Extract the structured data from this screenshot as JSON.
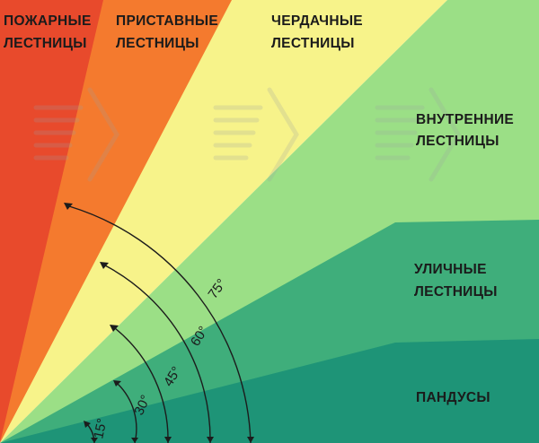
{
  "zones": [
    {
      "id": "fire",
      "label_line1": "ПОЖАРНЫЕ",
      "label_line2": "ЛЕСТНИЦЫ",
      "color": "#e84a2c"
    },
    {
      "id": "ladder",
      "label_line1": "ПРИСТАВНЫЕ",
      "label_line2": "ЛЕСТНИЦЫ",
      "color": "#f47a2e"
    },
    {
      "id": "attic",
      "label_line1": "ЧЕРДАЧНЫЕ",
      "label_line2": "ЛЕСТНИЦЫ",
      "color": "#f7f38a"
    },
    {
      "id": "interior",
      "label_line1": "ВНУТРЕННИЕ",
      "label_line2": "ЛЕСТНИЦЫ",
      "color": "#9bdf86"
    },
    {
      "id": "street",
      "label_line1": "УЛИЧНЫЕ",
      "label_line2": "ЛЕСТНИЦЫ",
      "color": "#3fae7b"
    },
    {
      "id": "ramps",
      "label_line1": "ПАНДУСЫ",
      "label_line2": "",
      "color": "#1e9477"
    }
  ],
  "angles": [
    {
      "label": "15°"
    },
    {
      "label": "30°"
    },
    {
      "label": "45°"
    },
    {
      "label": "60°"
    },
    {
      "label": "75°"
    }
  ]
}
